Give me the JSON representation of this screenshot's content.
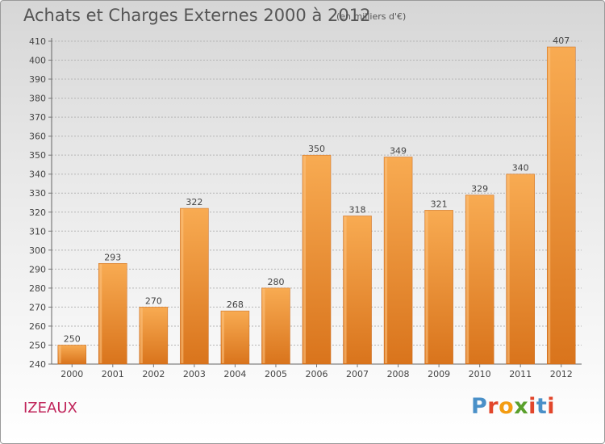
{
  "title": "Achats et Charges Externes 2000 à 2012",
  "unit_label": "(en milliers d'€)",
  "place": "IZEAUX",
  "logo": {
    "text": "Proxiti",
    "colors": [
      "#4a90c8",
      "#e2462b",
      "#f39c12",
      "#5aa02c",
      "#e2462b",
      "#4a90c8",
      "#e2462b"
    ]
  },
  "colors": {
    "bar_light": "#f7a94e",
    "bar_dark": "#d9741c",
    "grid": "#b5b5b5",
    "place": "#c0245a"
  },
  "chart_data": {
    "type": "bar",
    "title": "Achats et Charges Externes 2000 à 2012",
    "subtitle": "(en milliers d'€)",
    "categories": [
      "2000",
      "2001",
      "2002",
      "2003",
      "2004",
      "2005",
      "2006",
      "2007",
      "2008",
      "2009",
      "2010",
      "2011",
      "2012"
    ],
    "values": [
      250,
      293,
      270,
      322,
      268,
      280,
      350,
      318,
      349,
      321,
      329,
      340,
      407
    ],
    "ylim": [
      240,
      410
    ],
    "yticks": [
      240,
      250,
      260,
      270,
      280,
      290,
      300,
      310,
      320,
      330,
      340,
      350,
      360,
      370,
      380,
      390,
      400,
      410
    ],
    "grid": true,
    "data_labels": true
  }
}
